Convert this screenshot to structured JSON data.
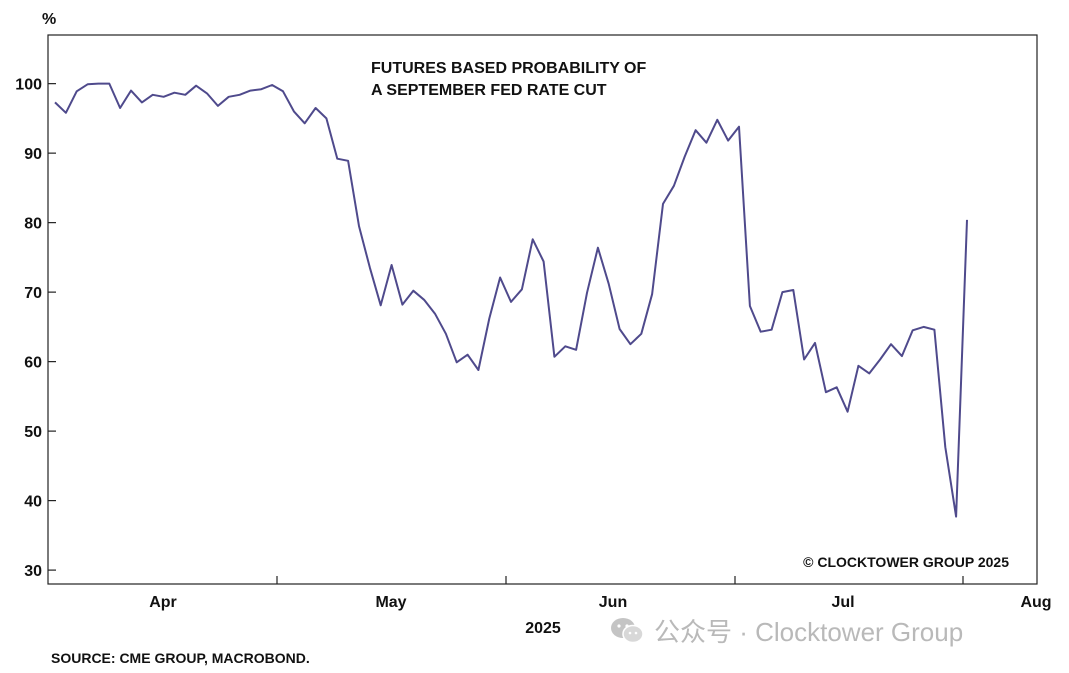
{
  "chart_data": {
    "type": "line",
    "title": [
      "FUTURES BASED PROBABILITY OF",
      "A SEPTEMBER FED RATE CUT"
    ],
    "y_unit": "%",
    "ylim": [
      28,
      107
    ],
    "y_ticks": [
      30,
      40,
      50,
      60,
      70,
      80,
      90,
      100
    ],
    "x_tick_labels": [
      "Apr",
      "May",
      "Jun",
      "Jul",
      "Aug"
    ],
    "x_year_label": "2025",
    "grid": false,
    "line_color": "#4f4a8c",
    "series": [
      {
        "values": [
          97.3,
          95.8,
          98.9,
          99.9,
          100.0,
          100.0,
          96.5,
          99.0,
          97.3,
          98.4,
          98.1,
          98.7,
          98.4,
          99.7,
          98.6,
          96.8,
          98.1,
          98.4,
          99.0,
          99.2,
          99.8,
          98.9,
          96.0,
          94.3,
          96.5,
          95.0,
          89.2,
          88.9,
          79.5,
          73.5,
          68.1,
          73.9,
          68.2,
          70.2,
          68.9,
          66.9,
          64.0,
          59.9,
          61.0,
          58.8,
          66.2,
          72.1,
          68.6,
          70.4,
          77.6,
          74.4,
          60.7,
          62.2,
          61.7,
          69.9,
          76.4,
          71.2,
          64.7,
          62.5,
          64.0,
          69.7,
          82.7,
          85.3,
          89.5,
          93.3,
          91.5,
          94.8,
          91.8,
          93.8,
          68.0,
          64.3,
          64.6,
          70.0,
          70.3,
          60.3,
          62.7,
          55.6,
          56.3,
          52.8,
          59.4,
          58.3,
          60.3,
          62.5,
          60.8,
          64.5,
          65.0,
          64.6,
          47.7,
          37.7,
          80.4
        ]
      }
    ]
  },
  "credit": "© CLOCKTOWER GROUP 2025",
  "source": "SOURCE: CME GROUP, MACROBOND.",
  "watermark": {
    "icon": "wechat-icon",
    "text": "公众号 · Clocktower Group"
  }
}
